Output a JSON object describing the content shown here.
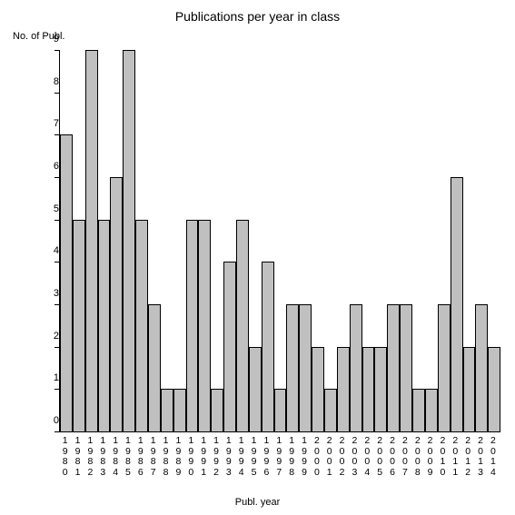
{
  "chart": {
    "type": "bar",
    "title": "Publications per year in class",
    "title_fontsize": 14,
    "y_axis_label": "No. of Publ.",
    "x_axis_label": "Publ. year",
    "label_fontsize": 11,
    "categories": [
      "1980",
      "1981",
      "1982",
      "1983",
      "1984",
      "1985",
      "1986",
      "1987",
      "1988",
      "1989",
      "1990",
      "1991",
      "1992",
      "1993",
      "1994",
      "1995",
      "1996",
      "1997",
      "1998",
      "1999",
      "2000",
      "2001",
      "2002",
      "2003",
      "2004",
      "2005",
      "2006",
      "2007",
      "2008",
      "2009",
      "2010",
      "2011",
      "2012",
      "2013",
      "2014"
    ],
    "values": [
      7,
      5,
      9,
      5,
      6,
      9,
      5,
      3,
      1,
      1,
      5,
      5,
      1,
      4,
      5,
      2,
      4,
      1,
      3,
      3,
      2,
      1,
      2,
      3,
      2,
      2,
      3,
      3,
      1,
      1,
      3,
      6,
      2,
      3,
      2
    ],
    "bar_color": "#c0c0c0",
    "bar_border_color": "#000000",
    "background_color": "#ffffff",
    "axis_color": "#000000",
    "text_color": "#000000",
    "ylim": [
      0,
      9
    ],
    "yticks": [
      0,
      1,
      2,
      3,
      4,
      5,
      6,
      7,
      8,
      9
    ],
    "tick_fontsize": 11
  }
}
